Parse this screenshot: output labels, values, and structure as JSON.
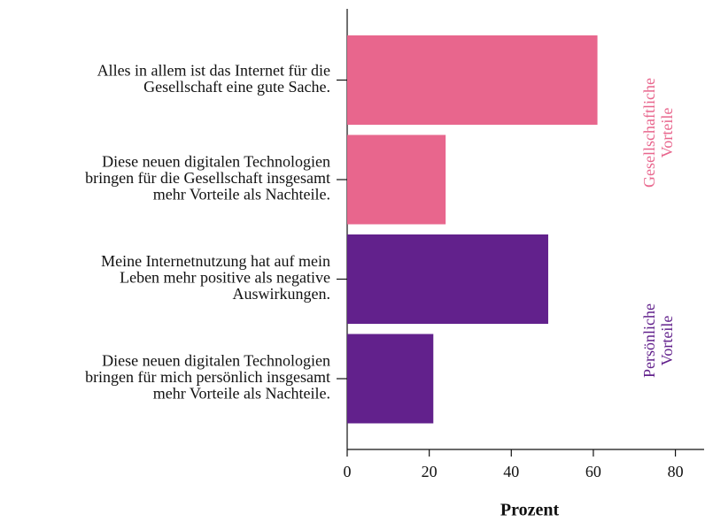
{
  "chart_data": {
    "type": "barh",
    "categories": [
      [
        "Alles in allem ist das Internet für die",
        "Gesellschaft eine gute Sache."
      ],
      [
        "Diese neuen digitalen Technologien",
        "bringen für die Gesellschaft insgesamt",
        "mehr Vorteile als Nachteile."
      ],
      [
        "Meine Internetnutzung hat auf mein",
        "Leben mehr positive als negative",
        "Auswirkungen."
      ],
      [
        "Diese neuen digitalen Technologien",
        "bringen für mich persönlich insgesamt",
        "mehr Vorteile als Nachteile."
      ]
    ],
    "values": [
      61,
      24,
      49,
      21
    ],
    "colors": [
      "#e8668d",
      "#e8668d",
      "#62218c",
      "#62218c"
    ],
    "xlim": [
      0,
      87
    ],
    "xticks": [
      0,
      20,
      40,
      60,
      80
    ],
    "xlabel": "Prozent",
    "groups": [
      {
        "label": [
          "Gesellschaftliche",
          "Vorteile"
        ],
        "color": "#e8668d"
      },
      {
        "label": [
          "Persönliche",
          "Vorteile"
        ],
        "color": "#62218c"
      }
    ]
  }
}
